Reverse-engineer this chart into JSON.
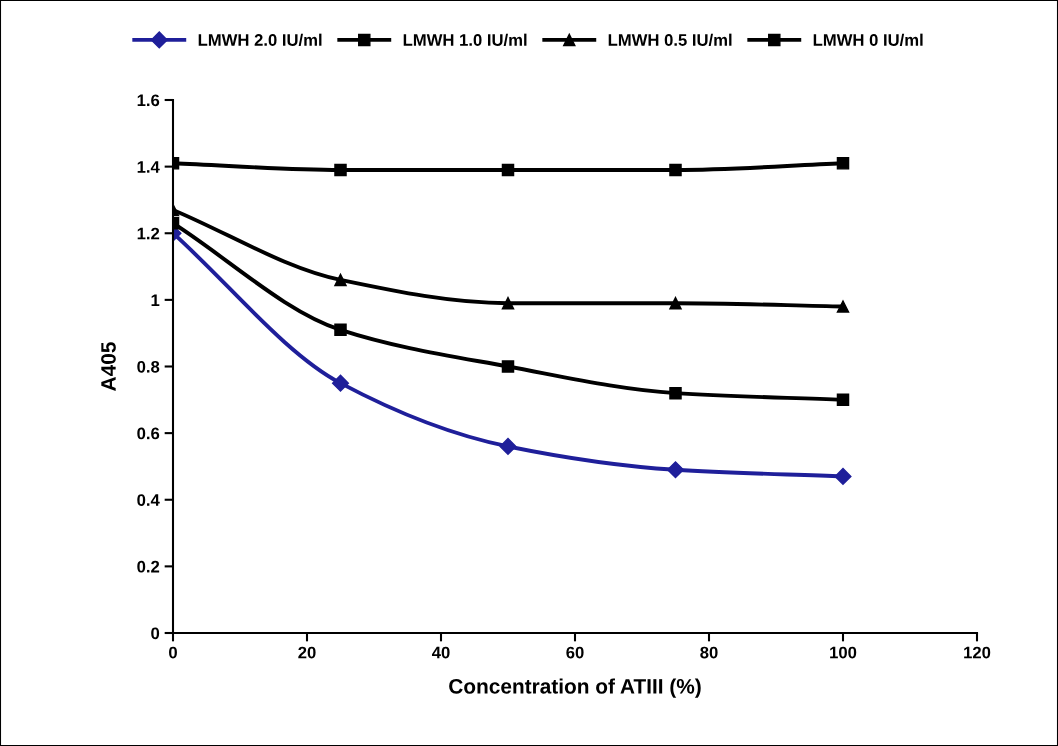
{
  "chart_data": {
    "type": "line",
    "xlabel": "Concentration of ATIII (%)",
    "ylabel": "A405",
    "x": [
      0,
      25,
      50,
      75,
      100
    ],
    "series": [
      {
        "name": "LMWH 2.0 IU/ml",
        "color": "#1f1f9a",
        "marker": "diamond",
        "values": [
          1.2,
          0.75,
          0.56,
          0.49,
          0.47
        ]
      },
      {
        "name": "LMWH 1.0 IU/ml",
        "color": "#000000",
        "marker": "square",
        "values": [
          1.23,
          0.91,
          0.8,
          0.72,
          0.7
        ]
      },
      {
        "name": "LMWH 0.5 IU/ml",
        "color": "#000000",
        "marker": "triangle",
        "values": [
          1.27,
          1.06,
          0.99,
          0.99,
          0.98
        ]
      },
      {
        "name": "LMWH 0 IU/ml",
        "color": "#000000",
        "marker": "square",
        "values": [
          1.41,
          1.39,
          1.39,
          1.39,
          1.41
        ]
      }
    ],
    "xlim": [
      0,
      120
    ],
    "xticks": [
      0,
      20,
      40,
      60,
      80,
      100,
      120
    ],
    "ylim": [
      0,
      1.6
    ],
    "yticks": [
      0,
      0.2,
      0.4,
      0.6,
      0.8,
      1,
      1.2,
      1.4,
      1.6
    ],
    "grid": false,
    "legend": "top",
    "line_style": "solid"
  }
}
